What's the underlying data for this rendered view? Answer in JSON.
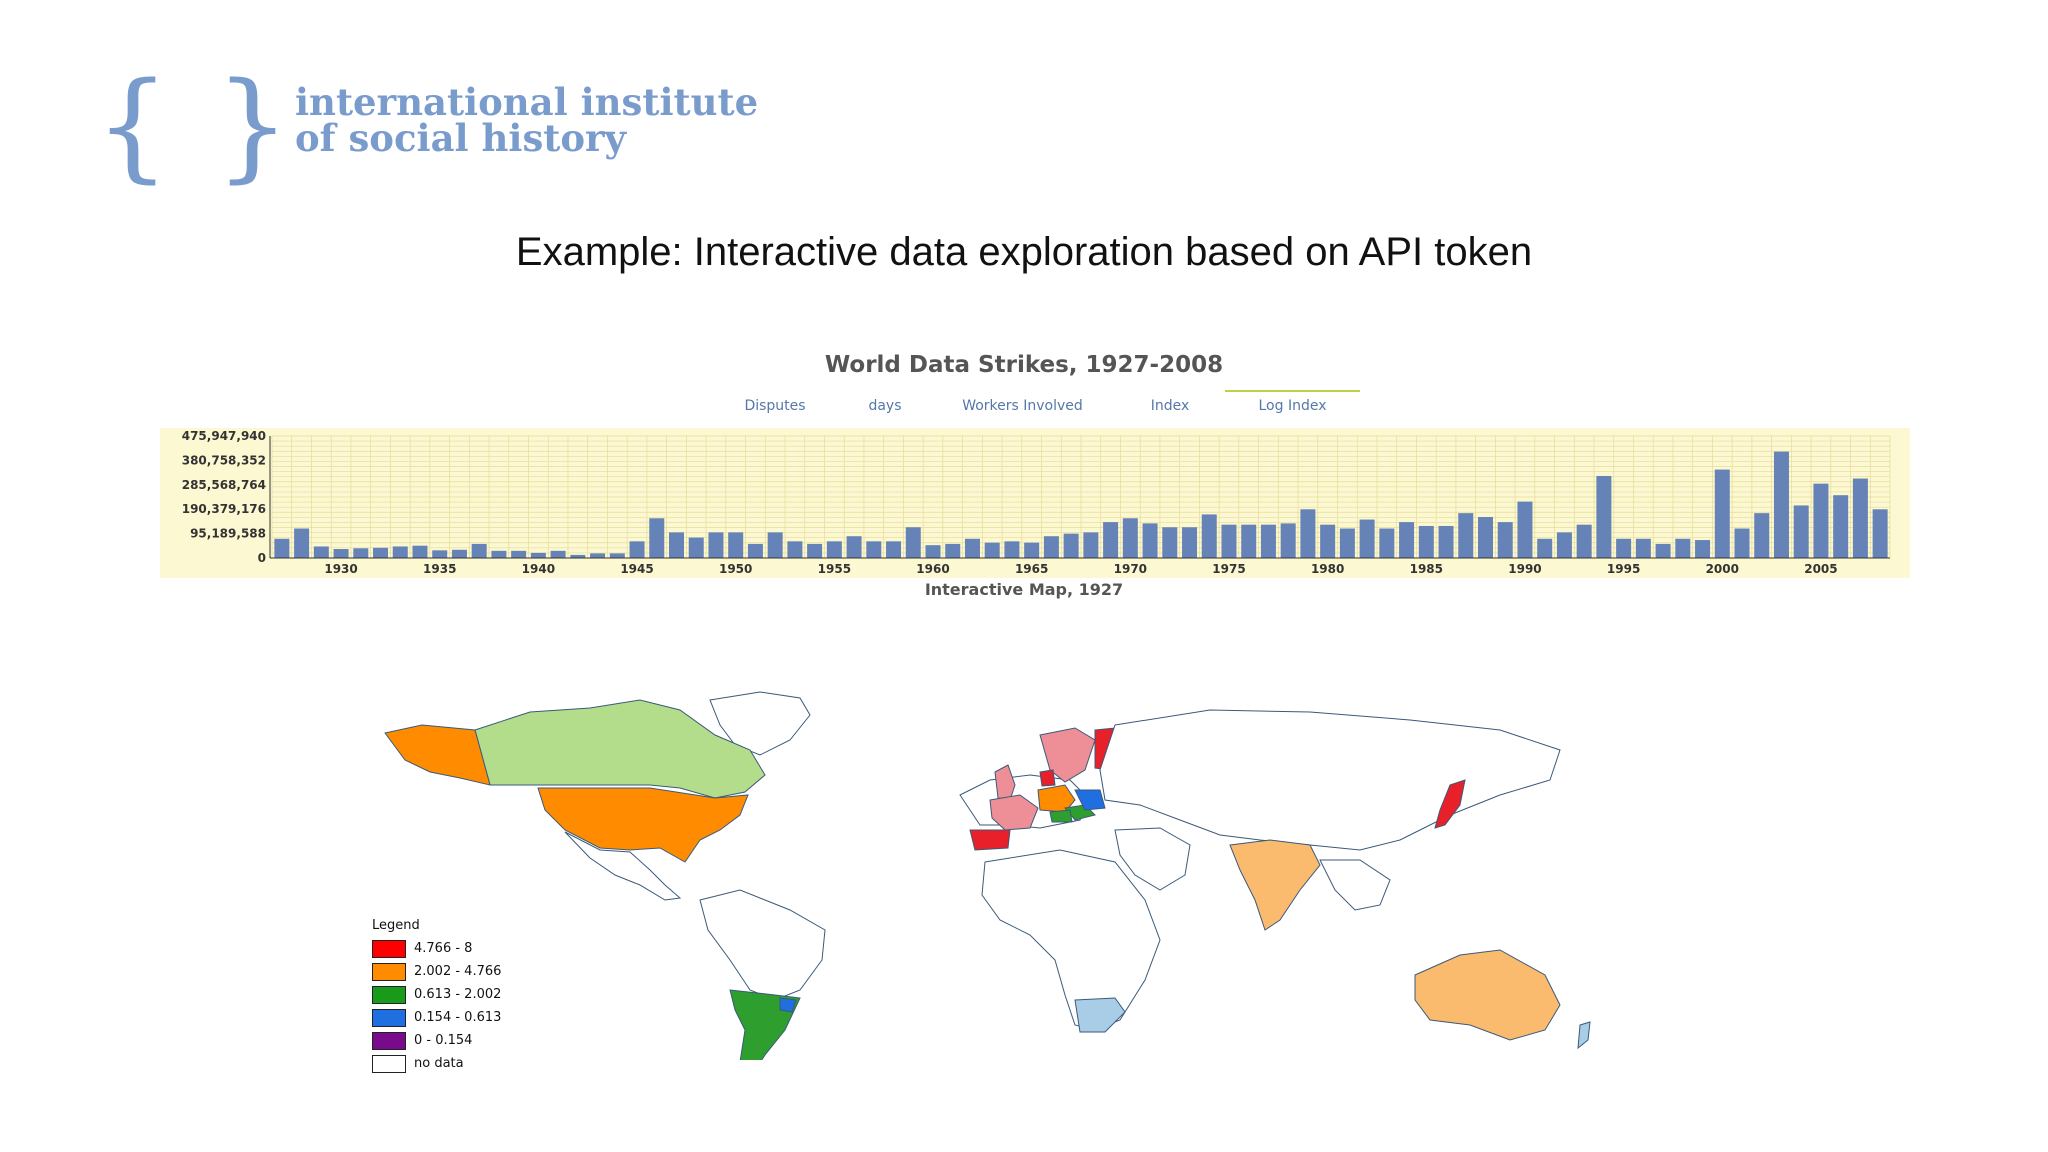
{
  "logo": {
    "line1": "international institute",
    "line2": "of social history",
    "brace_left": "{",
    "brace_right": "}"
  },
  "slide": {
    "title": "Example: Interactive data exploration based on API token"
  },
  "colors": {
    "bar": "#6683b8",
    "plot_bg": "#fcf8d2",
    "tab_text": "#5577aa",
    "active_tab_underline": "#bfcf4a"
  },
  "chart_data": {
    "type": "bar",
    "title": "World Data Strikes, 1927-2008",
    "tabs": [
      {
        "label": "Disputes",
        "active": false
      },
      {
        "label": "days",
        "active": false
      },
      {
        "label": "Workers Involved",
        "active": false
      },
      {
        "label": "Index",
        "active": false
      },
      {
        "label": "Log Index",
        "active": true
      }
    ],
    "x_start": 1927,
    "x_ticks": [
      "1930",
      "1935",
      "1940",
      "1945",
      "1950",
      "1955",
      "1960",
      "1965",
      "1970",
      "1975",
      "1980",
      "1985",
      "1990",
      "1995",
      "2000",
      "2005"
    ],
    "y_ticks": [
      "0",
      "95,189,588",
      "190,379,176",
      "285,568,764",
      "380,758,352",
      "475,947,940"
    ],
    "ylim": [
      0,
      475947940
    ],
    "grid": true,
    "values": [
      75000000,
      115000000,
      45000000,
      35000000,
      38000000,
      40000000,
      45000000,
      48000000,
      30000000,
      32000000,
      55000000,
      28000000,
      28000000,
      20000000,
      28000000,
      12000000,
      18000000,
      18000000,
      65000000,
      155000000,
      100000000,
      80000000,
      100000000,
      100000000,
      55000000,
      100000000,
      65000000,
      55000000,
      65000000,
      85000000,
      65000000,
      65000000,
      120000000,
      50000000,
      55000000,
      75000000,
      60000000,
      65000000,
      60000000,
      85000000,
      95000000,
      100000000,
      140000000,
      155000000,
      135000000,
      120000000,
      120000000,
      170000000,
      130000000,
      130000000,
      130000000,
      135000000,
      190000000,
      130000000,
      115000000,
      150000000,
      115000000,
      140000000,
      125000000,
      125000000,
      175000000,
      160000000,
      140000000,
      220000000,
      75000000,
      100000000,
      130000000,
      320000000,
      75000000,
      75000000,
      55000000,
      75000000,
      70000000,
      345000000,
      115000000,
      175000000,
      415000000,
      205000000,
      290000000,
      245000000,
      310000000,
      190000000
    ]
  },
  "map": {
    "title": "Interactive Map, 1927",
    "legend_title": "Legend",
    "legend": [
      {
        "label": "4.766 - 8",
        "color": "#ff0000"
      },
      {
        "label": "2.002 - 4.766",
        "color": "#ff8c00"
      },
      {
        "label": "0.613 - 2.002",
        "color": "#1a9a1a"
      },
      {
        "label": "0.154 - 0.613",
        "color": "#1f6fe0"
      },
      {
        "label": "0 - 0.154",
        "color": "#7a0a8c"
      },
      {
        "label": "no data",
        "color": "#ffffff"
      }
    ]
  }
}
